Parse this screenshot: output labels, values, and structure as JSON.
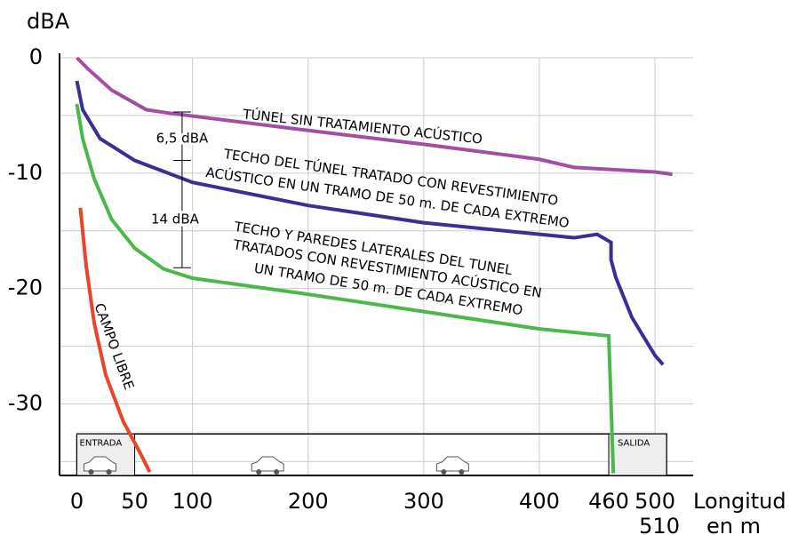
{
  "chart_data": {
    "type": "line",
    "y_label": "dBA",
    "x_label": [
      "Longitud",
      "en m"
    ],
    "xlim": [
      -15,
      533
    ],
    "ylim": [
      -36.2,
      0
    ],
    "xticks": [
      0,
      50,
      100,
      200,
      300,
      400,
      460,
      500,
      510
    ],
    "xgrid": [
      100,
      200,
      300,
      400,
      500
    ],
    "yticks": [
      0,
      -10,
      -20,
      -30
    ],
    "ygrid": [
      0,
      -5,
      -10,
      -15,
      -20,
      -25,
      -30,
      -35
    ],
    "grid": true,
    "series": [
      {
        "name": "TÚNEL SIN TRATAMIENTO ACÚSTICO",
        "color": "#a34ea6",
        "x": [
          0,
          10,
          30,
          60,
          80,
          200,
          300,
          400,
          430,
          500,
          515
        ],
        "values": [
          0,
          -1,
          -2.8,
          -4.5,
          -4.8,
          -6.3,
          -7.5,
          -8.8,
          -9.5,
          -9.9,
          -10.1
        ]
      },
      {
        "name": "TECHO DEL TÚNEL TRATADO CON REVESTIMIENTO ACÚSTICO EN UN TRAMO DE 50 m. DE CADA EXTREMO",
        "color": "#3a2f96",
        "lines": [
          "TECHO DEL TÚNEL TRATADO CON REVESTIMIENTO",
          "ACÚSTICO EN UN TRAMO DE 50 m. DE CADA EXTREMO"
        ],
        "x": [
          0,
          5,
          20,
          50,
          100,
          200,
          300,
          400,
          430,
          450,
          462,
          462,
          466,
          480,
          500,
          507
        ],
        "values": [
          -2,
          -4.5,
          -7,
          -8.9,
          -10.8,
          -12.8,
          -14.3,
          -15.3,
          -15.6,
          -15.3,
          -16,
          -17.5,
          -19,
          -22.5,
          -25.8,
          -26.6
        ]
      },
      {
        "name": "TECHO Y PAREDES LATERALES DEL TUNEL TRATADOS CON REVESTIMIENTO ACÚSTICO EN UN TRAMO DE 50 m. DE CADA EXTREMO",
        "color": "#4cb84c",
        "lines": [
          "TECHO Y PAREDES LATERALES DEL TUNEL",
          "TRATADOS CON REVESTIMIENTO ACÚSTICO EN",
          "UN TRAMO DE 50 m. DE CADA EXTREMO"
        ],
        "x": [
          0,
          5,
          15,
          30,
          50,
          75,
          100,
          200,
          300,
          400,
          460,
          462,
          464
        ],
        "values": [
          -4,
          -7,
          -10.5,
          -14,
          -16.5,
          -18.3,
          -19.1,
          -20.5,
          -22,
          -23.5,
          -24.1,
          -30,
          -36
        ]
      },
      {
        "name": "CAMPO LIBRE",
        "color": "#e8452a",
        "x": [
          3,
          8,
          15,
          25,
          40,
          55,
          63
        ],
        "values": [
          -13,
          -18,
          -23,
          -27.5,
          -31.5,
          -34.3,
          -35.9
        ]
      }
    ],
    "annotations": [
      "6,5 dBA",
      "14 dBA",
      "ENTRADA",
      "SALIDA"
    ]
  }
}
